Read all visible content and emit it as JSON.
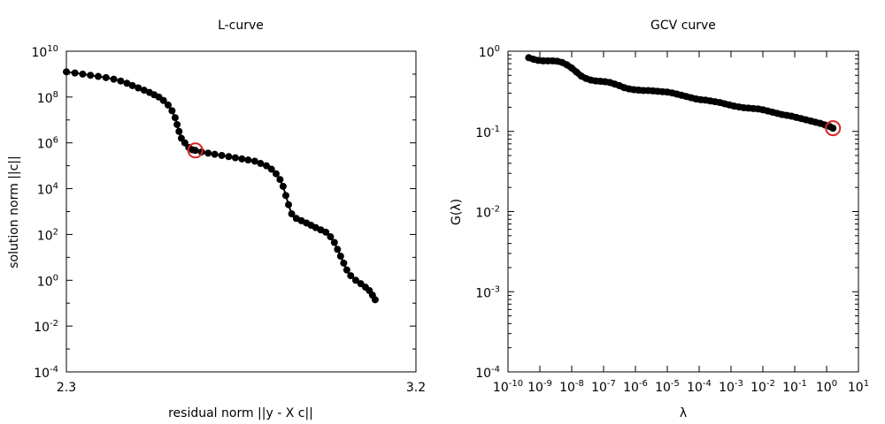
{
  "chart_data": [
    {
      "type": "scatter",
      "title": "L-curve",
      "xlabel": "residual norm ||y - X c||",
      "ylabel": "solution norm ||c||",
      "xlim": [
        2.3,
        3.2
      ],
      "ylim_exp": [
        -4,
        10
      ],
      "y_scale": "log",
      "x_ticks": [
        "2.3",
        "3.2"
      ],
      "y_tick_exponents": [
        10,
        8,
        6,
        4,
        2,
        0,
        -2,
        -4
      ],
      "y_tick_base": "10",
      "marker_color": "#000000",
      "highlight_color": "#dd2222",
      "highlight": {
        "x": 2.632,
        "y_exp": 5.67
      },
      "points": [
        {
          "x": 2.3,
          "y_exp": 9.1
        },
        {
          "x": 2.322,
          "y_exp": 9.05
        },
        {
          "x": 2.342,
          "y_exp": 9.0
        },
        {
          "x": 2.362,
          "y_exp": 8.95
        },
        {
          "x": 2.382,
          "y_exp": 8.9
        },
        {
          "x": 2.402,
          "y_exp": 8.85
        },
        {
          "x": 2.422,
          "y_exp": 8.78
        },
        {
          "x": 2.44,
          "y_exp": 8.7
        },
        {
          "x": 2.456,
          "y_exp": 8.6
        },
        {
          "x": 2.47,
          "y_exp": 8.5
        },
        {
          "x": 2.485,
          "y_exp": 8.4
        },
        {
          "x": 2.5,
          "y_exp": 8.3
        },
        {
          "x": 2.514,
          "y_exp": 8.2
        },
        {
          "x": 2.526,
          "y_exp": 8.1
        },
        {
          "x": 2.538,
          "y_exp": 8.0
        },
        {
          "x": 2.55,
          "y_exp": 7.85
        },
        {
          "x": 2.562,
          "y_exp": 7.65
        },
        {
          "x": 2.572,
          "y_exp": 7.4
        },
        {
          "x": 2.58,
          "y_exp": 7.1
        },
        {
          "x": 2.585,
          "y_exp": 6.8
        },
        {
          "x": 2.59,
          "y_exp": 6.5
        },
        {
          "x": 2.596,
          "y_exp": 6.2
        },
        {
          "x": 2.605,
          "y_exp": 6.0
        },
        {
          "x": 2.615,
          "y_exp": 5.8
        },
        {
          "x": 2.624,
          "y_exp": 5.7
        },
        {
          "x": 2.632,
          "y_exp": 5.67
        },
        {
          "x": 2.648,
          "y_exp": 5.6
        },
        {
          "x": 2.665,
          "y_exp": 5.55
        },
        {
          "x": 2.682,
          "y_exp": 5.5
        },
        {
          "x": 2.7,
          "y_exp": 5.45
        },
        {
          "x": 2.718,
          "y_exp": 5.4
        },
        {
          "x": 2.735,
          "y_exp": 5.35
        },
        {
          "x": 2.752,
          "y_exp": 5.3
        },
        {
          "x": 2.768,
          "y_exp": 5.25
        },
        {
          "x": 2.785,
          "y_exp": 5.2
        },
        {
          "x": 2.8,
          "y_exp": 5.1
        },
        {
          "x": 2.815,
          "y_exp": 5.0
        },
        {
          "x": 2.828,
          "y_exp": 4.85
        },
        {
          "x": 2.84,
          "y_exp": 4.65
        },
        {
          "x": 2.85,
          "y_exp": 4.4
        },
        {
          "x": 2.858,
          "y_exp": 4.1
        },
        {
          "x": 2.865,
          "y_exp": 3.7
        },
        {
          "x": 2.872,
          "y_exp": 3.3
        },
        {
          "x": 2.88,
          "y_exp": 2.9
        },
        {
          "x": 2.892,
          "y_exp": 2.7
        },
        {
          "x": 2.905,
          "y_exp": 2.6
        },
        {
          "x": 2.918,
          "y_exp": 2.5
        },
        {
          "x": 2.93,
          "y_exp": 2.4
        },
        {
          "x": 2.942,
          "y_exp": 2.3
        },
        {
          "x": 2.955,
          "y_exp": 2.2
        },
        {
          "x": 2.968,
          "y_exp": 2.1
        },
        {
          "x": 2.98,
          "y_exp": 1.9
        },
        {
          "x": 2.99,
          "y_exp": 1.65
        },
        {
          "x": 2.998,
          "y_exp": 1.35
        },
        {
          "x": 3.006,
          "y_exp": 1.05
        },
        {
          "x": 3.014,
          "y_exp": 0.75
        },
        {
          "x": 3.022,
          "y_exp": 0.45
        },
        {
          "x": 3.032,
          "y_exp": 0.2
        },
        {
          "x": 3.045,
          "y_exp": 0.0
        },
        {
          "x": 3.058,
          "y_exp": -0.15
        },
        {
          "x": 3.07,
          "y_exp": -0.3
        },
        {
          "x": 3.08,
          "y_exp": -0.45
        },
        {
          "x": 3.088,
          "y_exp": -0.65
        },
        {
          "x": 3.095,
          "y_exp": -0.85
        }
      ]
    },
    {
      "type": "scatter",
      "title": "GCV curve",
      "xlabel": "λ",
      "ylabel": "G(λ)",
      "x_scale": "log",
      "y_scale": "log",
      "xlim_exp": [
        -10,
        1
      ],
      "ylim_exp": [
        -4,
        0
      ],
      "x_tick_exponents": [
        -10,
        -9,
        -8,
        -7,
        -6,
        -5,
        -4,
        -3,
        -2,
        -1,
        0,
        1
      ],
      "x_tick_labels": [
        "10",
        "10",
        "10",
        "10",
        "10",
        "10",
        "10",
        "10",
        "10",
        "10",
        "10",
        "10"
      ],
      "x_tick_sups": [
        "-10",
        "-9",
        "-8",
        "-7",
        "-6",
        "-5",
        "-4",
        "-3",
        "-2",
        "-1",
        "0",
        "1"
      ],
      "y_tick_exponents": [
        0,
        -1,
        -2,
        -3,
        -4
      ],
      "y_tick_labels": [
        "10",
        "10",
        "10",
        "10",
        "10"
      ],
      "y_tick_sups": [
        "0",
        "-1",
        "-2",
        "-3",
        "-4"
      ],
      "marker_color": "#000000",
      "highlight_color": "#dd2222",
      "highlight": {
        "x_exp": 0.2,
        "y_exp": -0.96
      },
      "points": [
        {
          "x_exp": -9.35,
          "y_exp": -0.08
        },
        {
          "x_exp": -9.2,
          "y_exp": -0.1
        },
        {
          "x_exp": -9.05,
          "y_exp": -0.115
        },
        {
          "x_exp": -8.9,
          "y_exp": -0.12
        },
        {
          "x_exp": -8.75,
          "y_exp": -0.12
        },
        {
          "x_exp": -8.6,
          "y_exp": -0.12
        },
        {
          "x_exp": -8.45,
          "y_exp": -0.125
        },
        {
          "x_exp": -8.3,
          "y_exp": -0.14
        },
        {
          "x_exp": -8.15,
          "y_exp": -0.17
        },
        {
          "x_exp": -8.0,
          "y_exp": -0.21
        },
        {
          "x_exp": -7.85,
          "y_exp": -0.26
        },
        {
          "x_exp": -7.7,
          "y_exp": -0.31
        },
        {
          "x_exp": -7.55,
          "y_exp": -0.34
        },
        {
          "x_exp": -7.4,
          "y_exp": -0.36
        },
        {
          "x_exp": -7.25,
          "y_exp": -0.37
        },
        {
          "x_exp": -7.1,
          "y_exp": -0.375
        },
        {
          "x_exp": -6.95,
          "y_exp": -0.38
        },
        {
          "x_exp": -6.8,
          "y_exp": -0.39
        },
        {
          "x_exp": -6.65,
          "y_exp": -0.41
        },
        {
          "x_exp": -6.5,
          "y_exp": -0.43
        },
        {
          "x_exp": -6.35,
          "y_exp": -0.455
        },
        {
          "x_exp": -6.2,
          "y_exp": -0.47
        },
        {
          "x_exp": -6.05,
          "y_exp": -0.48
        },
        {
          "x_exp": -5.9,
          "y_exp": -0.485
        },
        {
          "x_exp": -5.75,
          "y_exp": -0.49
        },
        {
          "x_exp": -5.6,
          "y_exp": -0.49
        },
        {
          "x_exp": -5.45,
          "y_exp": -0.495
        },
        {
          "x_exp": -5.3,
          "y_exp": -0.5
        },
        {
          "x_exp": -5.15,
          "y_exp": -0.505
        },
        {
          "x_exp": -5.0,
          "y_exp": -0.51
        },
        {
          "x_exp": -4.85,
          "y_exp": -0.52
        },
        {
          "x_exp": -4.7,
          "y_exp": -0.535
        },
        {
          "x_exp": -4.55,
          "y_exp": -0.55
        },
        {
          "x_exp": -4.4,
          "y_exp": -0.565
        },
        {
          "x_exp": -4.25,
          "y_exp": -0.58
        },
        {
          "x_exp": -4.1,
          "y_exp": -0.595
        },
        {
          "x_exp": -3.95,
          "y_exp": -0.605
        },
        {
          "x_exp": -3.8,
          "y_exp": -0.61
        },
        {
          "x_exp": -3.65,
          "y_exp": -0.62
        },
        {
          "x_exp": -3.5,
          "y_exp": -0.63
        },
        {
          "x_exp": -3.35,
          "y_exp": -0.64
        },
        {
          "x_exp": -3.2,
          "y_exp": -0.655
        },
        {
          "x_exp": -3.05,
          "y_exp": -0.67
        },
        {
          "x_exp": -2.9,
          "y_exp": -0.685
        },
        {
          "x_exp": -2.75,
          "y_exp": -0.695
        },
        {
          "x_exp": -2.6,
          "y_exp": -0.705
        },
        {
          "x_exp": -2.45,
          "y_exp": -0.71
        },
        {
          "x_exp": -2.3,
          "y_exp": -0.715
        },
        {
          "x_exp": -2.15,
          "y_exp": -0.72
        },
        {
          "x_exp": -2.0,
          "y_exp": -0.73
        },
        {
          "x_exp": -1.85,
          "y_exp": -0.745
        },
        {
          "x_exp": -1.7,
          "y_exp": -0.76
        },
        {
          "x_exp": -1.55,
          "y_exp": -0.775
        },
        {
          "x_exp": -1.4,
          "y_exp": -0.79
        },
        {
          "x_exp": -1.25,
          "y_exp": -0.8
        },
        {
          "x_exp": -1.1,
          "y_exp": -0.81
        },
        {
          "x_exp": -0.95,
          "y_exp": -0.825
        },
        {
          "x_exp": -0.8,
          "y_exp": -0.84
        },
        {
          "x_exp": -0.65,
          "y_exp": -0.855
        },
        {
          "x_exp": -0.5,
          "y_exp": -0.87
        },
        {
          "x_exp": -0.35,
          "y_exp": -0.885
        },
        {
          "x_exp": -0.2,
          "y_exp": -0.9
        },
        {
          "x_exp": -0.05,
          "y_exp": -0.92
        },
        {
          "x_exp": 0.1,
          "y_exp": -0.94
        },
        {
          "x_exp": 0.2,
          "y_exp": -0.96
        }
      ]
    }
  ]
}
